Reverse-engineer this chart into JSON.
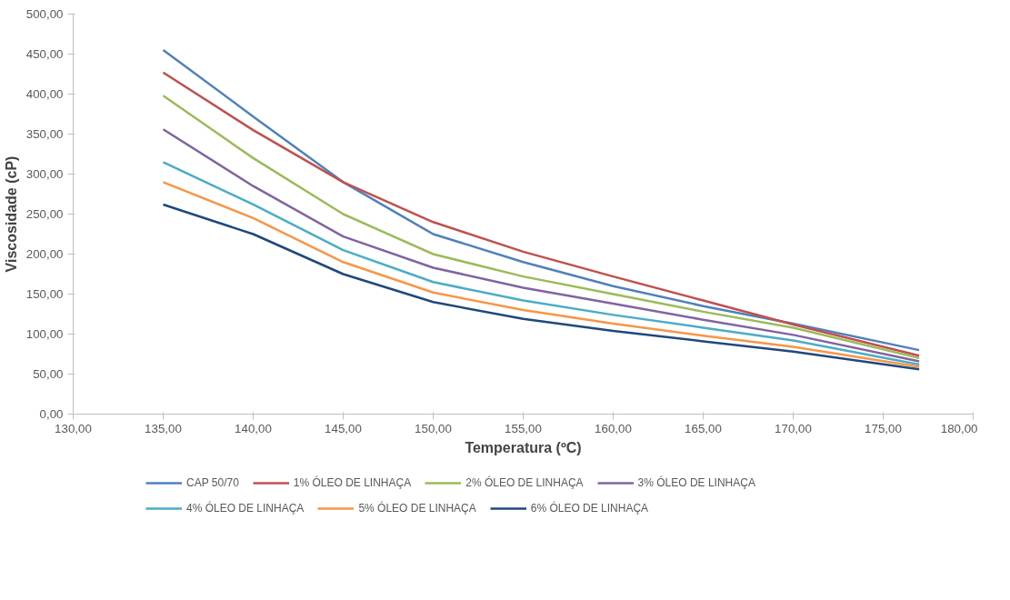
{
  "chart_data": {
    "type": "line",
    "xlabel": "Temperatura (ºC)",
    "ylabel": "Viscosidade (cP)",
    "x": [
      135,
      140,
      145,
      150,
      155,
      160,
      165,
      170,
      177
    ],
    "series": [
      {
        "name": "CAP 50/70",
        "color": "#4f81bd",
        "values": [
          455,
          372,
          290,
          225,
          190,
          160,
          135,
          113,
          80
        ]
      },
      {
        "name": "1% ÓLEO DE LINHAÇA",
        "color": "#c0504d",
        "values": [
          427,
          355,
          290,
          240,
          203,
          172,
          142,
          112,
          73
        ]
      },
      {
        "name": "2% ÓLEO DE LINHAÇA",
        "color": "#9bbb59",
        "values": [
          398,
          320,
          250,
          200,
          172,
          150,
          128,
          108,
          70
        ]
      },
      {
        "name": "3% ÓLEO DE LINHAÇA",
        "color": "#8064a2",
        "values": [
          356,
          285,
          222,
          183,
          158,
          138,
          118,
          99,
          66
        ]
      },
      {
        "name": "4% ÓLEO DE LINHAÇA",
        "color": "#4bacc6",
        "values": [
          315,
          262,
          205,
          165,
          142,
          124,
          108,
          92,
          62
        ]
      },
      {
        "name": "5% ÓLEO DE LINHAÇA",
        "color": "#f79646",
        "values": [
          290,
          245,
          190,
          152,
          130,
          113,
          98,
          84,
          59
        ]
      },
      {
        "name": "6% ÓLEO DE LINHAÇA",
        "color": "#1f497d",
        "values": [
          262,
          225,
          175,
          140,
          119,
          104,
          91,
          78,
          56
        ]
      }
    ],
    "xlim": [
      130,
      180
    ],
    "xticks": [
      {
        "value": 130,
        "label": "130,00"
      },
      {
        "value": 135,
        "label": "135,00"
      },
      {
        "value": 140,
        "label": "140,00"
      },
      {
        "value": 145,
        "label": "145,00"
      },
      {
        "value": 150,
        "label": "150,00"
      },
      {
        "value": 155,
        "label": "155,00"
      },
      {
        "value": 160,
        "label": "160,00"
      },
      {
        "value": 165,
        "label": "165,00"
      },
      {
        "value": 170,
        "label": "170,00"
      },
      {
        "value": 175,
        "label": "175,00"
      },
      {
        "value": 180,
        "label": "180,00"
      }
    ],
    "ylim": [
      0,
      500
    ],
    "yticks": [
      {
        "value": 0,
        "label": "0,00"
      },
      {
        "value": 50,
        "label": "50,00"
      },
      {
        "value": 100,
        "label": "100,00"
      },
      {
        "value": 150,
        "label": "150,00"
      },
      {
        "value": 200,
        "label": "200,00"
      },
      {
        "value": 250,
        "label": "250,00"
      },
      {
        "value": 300,
        "label": "300,00"
      },
      {
        "value": 350,
        "label": "350,00"
      },
      {
        "value": 400,
        "label": "400,00"
      },
      {
        "value": 450,
        "label": "450,00"
      },
      {
        "value": 500,
        "label": "500,00"
      }
    ],
    "grid": false,
    "legend": "bottom",
    "marker": "none",
    "line_style": "solid"
  }
}
